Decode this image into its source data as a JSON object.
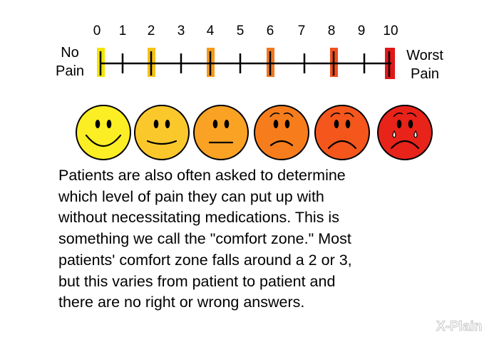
{
  "scale": {
    "numbers": [
      "0",
      "1",
      "2",
      "3",
      "4",
      "5",
      "6",
      "7",
      "8",
      "9",
      "10"
    ],
    "left_label": [
      "No",
      "Pain"
    ],
    "right_label": [
      "Worst",
      "Pain"
    ],
    "highlight_colors": [
      "#f2e600",
      "#f6c21a",
      "#f59a18",
      "#f07820",
      "#ef5020",
      "#e01818"
    ]
  },
  "faces": [
    {
      "name": "face-very-happy",
      "color": "#fbee24",
      "expression": "big-smile"
    },
    {
      "name": "face-slightly-happy",
      "color": "#fbc82c",
      "expression": "slight-smile"
    },
    {
      "name": "face-neutral",
      "color": "#f9a224",
      "expression": "neutral"
    },
    {
      "name": "face-sad",
      "color": "#f77d1c",
      "expression": "frown"
    },
    {
      "name": "face-very-sad",
      "color": "#f4561c",
      "expression": "big-frown"
    },
    {
      "name": "face-crying",
      "color": "#e8231a",
      "expression": "crying"
    }
  ],
  "paragraph": [
    "Patients are also often asked to determine",
    "which level of pain they can put up with",
    "without necessitating medications. This is",
    "something we call the \"comfort zone.\" Most",
    "patients' comfort zone falls around a 2 or 3,",
    "but this varies from patient to patient and",
    "there are no right or wrong answers."
  ],
  "logo": {
    "text": "X-Plain"
  }
}
